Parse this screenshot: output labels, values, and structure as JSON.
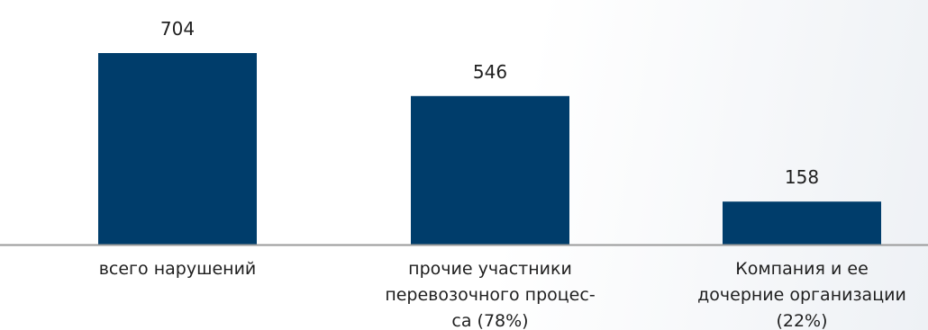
{
  "chart_data": {
    "type": "bar",
    "categories": [
      [
        "всего нарушений"
      ],
      [
        "прочие участники",
        "перевозочного процес-",
        "са (78%)"
      ],
      [
        "Компания и ее",
        "дочерние организации",
        "(22%)"
      ]
    ],
    "values": [
      704,
      546,
      158
    ],
    "value_labels": [
      "704",
      "546",
      "158"
    ],
    "ylim": [
      0,
      704
    ],
    "bar_color": "#003d6b",
    "axis_color": "#9a9a9a",
    "grid": false,
    "legend": "none"
  }
}
